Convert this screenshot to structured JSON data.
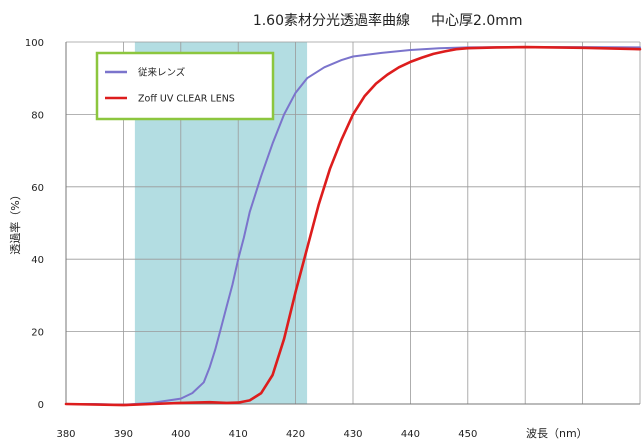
{
  "chart_data": {
    "type": "line",
    "title": "1.60素材分光透過率曲線",
    "subtitle": "中心厚2.0mm",
    "xlabel": "波長（nm）",
    "ylabel": "透過率（%）",
    "xlim": [
      380,
      480
    ],
    "ylim": [
      0,
      100
    ],
    "x_ticks": [
      "380",
      "390",
      "400",
      "410",
      "420",
      "430",
      "440",
      "450"
    ],
    "y_ticks": [
      "0",
      "20",
      "40",
      "60",
      "80",
      "100"
    ],
    "grid": true,
    "legend_position": "top-left",
    "highlight_band": {
      "from": 392,
      "to": 422,
      "color": "#b3dde2"
    },
    "series": [
      {
        "name": "従来レンズ",
        "color": "#7b74cc",
        "x": [
          380,
          385,
          390,
          395,
          400,
          402,
          404,
          405,
          406,
          407,
          408,
          409,
          410,
          411,
          412,
          414,
          416,
          418,
          420,
          422,
          425,
          428,
          430,
          435,
          440,
          445,
          450,
          460,
          470,
          480
        ],
        "y": [
          0,
          0,
          -0.2,
          0.3,
          1.5,
          3,
          6,
          10,
          15,
          21,
          27,
          33,
          40,
          46,
          53,
          63,
          72,
          80,
          86,
          90,
          93,
          95,
          96,
          97,
          97.8,
          98.3,
          98.5,
          98.6,
          98.6,
          98.5
        ]
      },
      {
        "name": "Zoff UV CLEAR LENS",
        "color": "#dd1d1d",
        "x": [
          380,
          390,
          395,
          400,
          405,
          408,
          410,
          412,
          414,
          416,
          418,
          420,
          422,
          424,
          426,
          428,
          430,
          432,
          434,
          436,
          438,
          440,
          442,
          444,
          446,
          448,
          450,
          455,
          460,
          470,
          480
        ],
        "y": [
          0,
          -0.3,
          0,
          0.3,
          0.5,
          0.3,
          0.4,
          1,
          3,
          8,
          18,
          31,
          43,
          55,
          65,
          73,
          80,
          85,
          88.5,
          91,
          93,
          94.5,
          95.7,
          96.7,
          97.4,
          98,
          98.3,
          98.5,
          98.6,
          98.4,
          98
        ]
      }
    ]
  }
}
